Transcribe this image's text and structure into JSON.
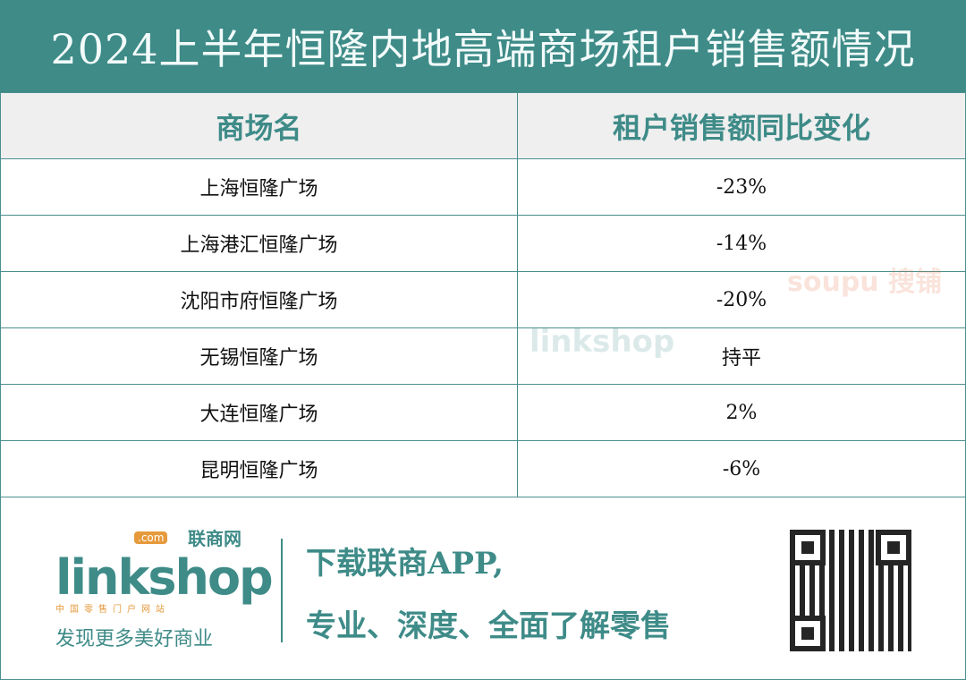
{
  "title": "2024上半年恒隆内地高端商场租户销售额情况",
  "table": {
    "headers": [
      "商场名",
      "租户销售额同比变化"
    ],
    "rows": [
      [
        "上海恒隆广场",
        "-23%"
      ],
      [
        "上海港汇恒隆广场",
        "-14%"
      ],
      [
        "沈阳市府恒隆广场",
        "-20%"
      ],
      [
        "无锡恒隆广场",
        "持平"
      ],
      [
        "大连恒隆广场",
        "2%"
      ],
      [
        "昆明恒隆广场",
        "-6%"
      ]
    ]
  },
  "watermarks": {
    "linkshop": "linkshop",
    "soupu": "soupu 搜铺"
  },
  "footer": {
    "logo_text": "linkshop",
    "logo_com": ".com",
    "logo_cn": "联商网",
    "logo_sub": "中国零售门户网站",
    "slogan": "发现更多美好商业",
    "cta_line1": "下载联商APP,",
    "cta_line2": "专业、深度、全面了解零售"
  },
  "colors": {
    "brand": "#3e8b88",
    "accent": "#e69a3c"
  }
}
